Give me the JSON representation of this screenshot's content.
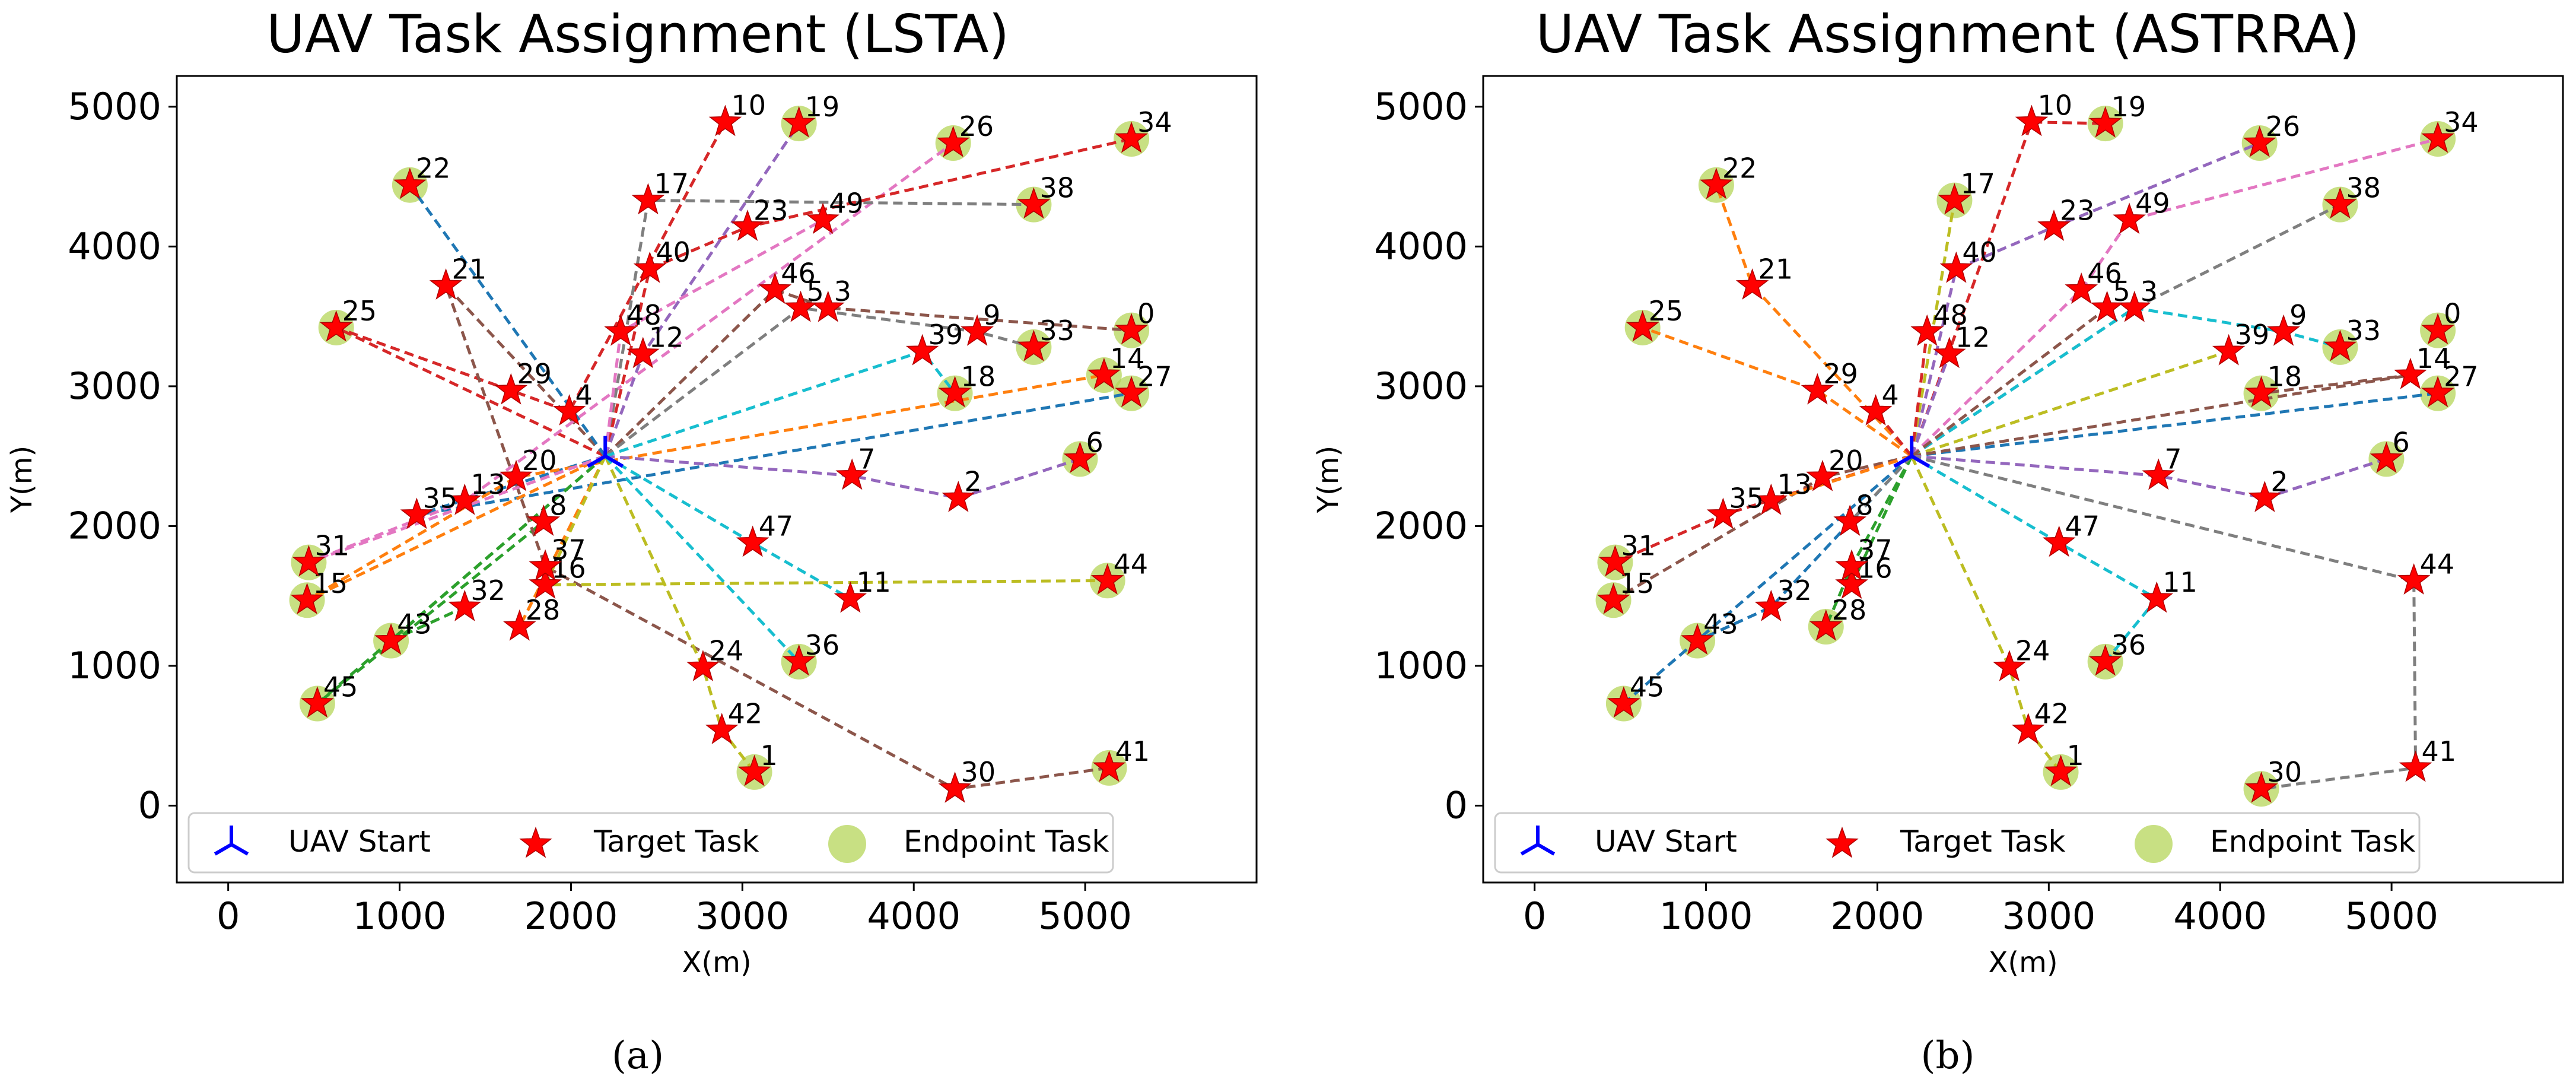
{
  "figure": {
    "panels": [
      {
        "caption": "(a)",
        "legend": [
          "UAV Start",
          "Target Task",
          "Endpoint Task"
        ]
      },
      {
        "caption": "(b)",
        "legend": [
          "UAV Start",
          "Target Task",
          "Endpoint Task"
        ]
      }
    ]
  },
  "chart_data": [
    {
      "type": "scatter",
      "title": "UAV Task Assignment (LSTA)",
      "xlabel": "X(m)",
      "ylabel": "Y(m)",
      "xlim": [
        -300,
        6000
      ],
      "ylim": [
        -550,
        5220
      ],
      "xticks": [
        0,
        1000,
        2000,
        3000,
        4000,
        5000
      ],
      "yticks": [
        0,
        1000,
        2000,
        3000,
        4000,
        5000
      ],
      "grid": false,
      "legend_position": "bottom",
      "uav_start": [
        2200,
        2500
      ],
      "targets": [
        {
          "id": "0",
          "x": 5270,
          "y": 3400
        },
        {
          "id": "1",
          "x": 3070,
          "y": 240
        },
        {
          "id": "2",
          "x": 4260,
          "y": 2200
        },
        {
          "id": "3",
          "x": 3500,
          "y": 3560
        },
        {
          "id": "4",
          "x": 1990,
          "y": 2820
        },
        {
          "id": "5",
          "x": 3340,
          "y": 3560
        },
        {
          "id": "6",
          "x": 4970,
          "y": 2480
        },
        {
          "id": "7",
          "x": 3640,
          "y": 2360
        },
        {
          "id": "8",
          "x": 1840,
          "y": 2030
        },
        {
          "id": "9",
          "x": 4370,
          "y": 3390
        },
        {
          "id": "10",
          "x": 2900,
          "y": 4890
        },
        {
          "id": "11",
          "x": 3630,
          "y": 1480
        },
        {
          "id": "12",
          "x": 2420,
          "y": 3230
        },
        {
          "id": "13",
          "x": 1380,
          "y": 2180
        },
        {
          "id": "14",
          "x": 5110,
          "y": 3080
        },
        {
          "id": "15",
          "x": 460,
          "y": 1470
        },
        {
          "id": "16",
          "x": 1850,
          "y": 1580
        },
        {
          "id": "17",
          "x": 2450,
          "y": 4330
        },
        {
          "id": "18",
          "x": 4240,
          "y": 2950
        },
        {
          "id": "19",
          "x": 3330,
          "y": 4880
        },
        {
          "id": "20",
          "x": 1680,
          "y": 2350
        },
        {
          "id": "21",
          "x": 1270,
          "y": 3720
        },
        {
          "id": "22",
          "x": 1060,
          "y": 4440
        },
        {
          "id": "23",
          "x": 3030,
          "y": 4140
        },
        {
          "id": "24",
          "x": 2770,
          "y": 990
        },
        {
          "id": "25",
          "x": 630,
          "y": 3420
        },
        {
          "id": "26",
          "x": 4230,
          "y": 4740
        },
        {
          "id": "27",
          "x": 5270,
          "y": 2950
        },
        {
          "id": "28",
          "x": 1700,
          "y": 1280
        },
        {
          "id": "29",
          "x": 1650,
          "y": 2970
        },
        {
          "id": "30",
          "x": 4240,
          "y": 120
        },
        {
          "id": "31",
          "x": 470,
          "y": 1740
        },
        {
          "id": "32",
          "x": 1380,
          "y": 1420
        },
        {
          "id": "33",
          "x": 4700,
          "y": 3280
        },
        {
          "id": "34",
          "x": 5270,
          "y": 4770
        },
        {
          "id": "35",
          "x": 1100,
          "y": 2080
        },
        {
          "id": "36",
          "x": 3330,
          "y": 1030
        },
        {
          "id": "37",
          "x": 1850,
          "y": 1710
        },
        {
          "id": "38",
          "x": 4700,
          "y": 4300
        },
        {
          "id": "39",
          "x": 4050,
          "y": 3250
        },
        {
          "id": "40",
          "x": 2460,
          "y": 3840
        },
        {
          "id": "41",
          "x": 5140,
          "y": 270
        },
        {
          "id": "42",
          "x": 2880,
          "y": 540
        },
        {
          "id": "43",
          "x": 950,
          "y": 1180
        },
        {
          "id": "44",
          "x": 5130,
          "y": 1610
        },
        {
          "id": "45",
          "x": 520,
          "y": 730
        },
        {
          "id": "46",
          "x": 3190,
          "y": 3690
        },
        {
          "id": "47",
          "x": 3060,
          "y": 1880
        },
        {
          "id": "48",
          "x": 2290,
          "y": 3390
        },
        {
          "id": "49",
          "x": 3470,
          "y": 4190
        }
      ],
      "endpoints": [
        "0",
        "1",
        "6",
        "14",
        "15",
        "18",
        "19",
        "22",
        "25",
        "26",
        "27",
        "31",
        "33",
        "34",
        "36",
        "38",
        "41",
        "43",
        "44",
        "45"
      ],
      "routes": [
        {
          "color": "#1f77b4",
          "path": [
            "35",
            "27"
          ]
        },
        {
          "color": "#ff7f0e",
          "path": [
            "15",
            "20",
            "14"
          ]
        },
        {
          "color": "#2ca02c",
          "path": [
            "45",
            "8"
          ]
        },
        {
          "color": "#d62728",
          "path": [
            "25",
            "29",
            "4",
            "10"
          ]
        },
        {
          "color": "#9467bd",
          "path": [
            "7",
            "2",
            "6"
          ]
        },
        {
          "color": "#8c564b",
          "path": [
            "21",
            "37",
            "30",
            "41"
          ]
        },
        {
          "color": "#e377c2",
          "path": [
            "31",
            "13",
            "26"
          ]
        },
        {
          "color": "#7f7f7f",
          "path": [
            "17",
            "38"
          ]
        },
        {
          "color": "#bcbd22",
          "path": [
            "24",
            "42",
            "1"
          ]
        },
        {
          "color": "#17becf",
          "path": [
            "47",
            "11"
          ]
        },
        {
          "color": "#1f77b4",
          "path": [
            "22"
          ]
        },
        {
          "color": "#ff7f0e",
          "path": [
            "28"
          ]
        },
        {
          "color": "#2ca02c",
          "path": [
            "43",
            "32"
          ]
        },
        {
          "color": "#d62728",
          "path": [
            "40",
            "23",
            "34"
          ]
        },
        {
          "color": "#9467bd",
          "path": [
            "12",
            "19"
          ]
        },
        {
          "color": "#8c564b",
          "path": [
            "46",
            "3",
            "0"
          ]
        },
        {
          "color": "#e377c2",
          "path": [
            "48",
            "49"
          ]
        },
        {
          "color": "#7f7f7f",
          "path": [
            "5",
            "9",
            "33"
          ]
        },
        {
          "color": "#bcbd22",
          "path": [
            "16",
            "44"
          ]
        },
        {
          "color": "#17becf",
          "path": [
            "39",
            "18"
          ]
        },
        {
          "color": "#17becf",
          "path": [
            "36"
          ]
        }
      ]
    },
    {
      "type": "scatter",
      "title": "UAV Task Assignment (ASTRRA)",
      "xlabel": "X(m)",
      "ylabel": "Y(m)",
      "xlim": [
        -300,
        6000
      ],
      "ylim": [
        -550,
        5220
      ],
      "xticks": [
        0,
        1000,
        2000,
        3000,
        4000,
        5000
      ],
      "yticks": [
        0,
        1000,
        2000,
        3000,
        4000,
        5000
      ],
      "grid": false,
      "legend_position": "bottom",
      "uav_start": [
        2200,
        2500
      ],
      "targets": [
        {
          "id": "0",
          "x": 5270,
          "y": 3400
        },
        {
          "id": "1",
          "x": 3070,
          "y": 240
        },
        {
          "id": "2",
          "x": 4260,
          "y": 2200
        },
        {
          "id": "3",
          "x": 3500,
          "y": 3560
        },
        {
          "id": "4",
          "x": 1990,
          "y": 2820
        },
        {
          "id": "5",
          "x": 3340,
          "y": 3560
        },
        {
          "id": "6",
          "x": 4970,
          "y": 2480
        },
        {
          "id": "7",
          "x": 3640,
          "y": 2360
        },
        {
          "id": "8",
          "x": 1840,
          "y": 2030
        },
        {
          "id": "9",
          "x": 4370,
          "y": 3390
        },
        {
          "id": "10",
          "x": 2900,
          "y": 4890
        },
        {
          "id": "11",
          "x": 3630,
          "y": 1480
        },
        {
          "id": "12",
          "x": 2420,
          "y": 3230
        },
        {
          "id": "13",
          "x": 1380,
          "y": 2180
        },
        {
          "id": "14",
          "x": 5110,
          "y": 3080
        },
        {
          "id": "15",
          "x": 460,
          "y": 1470
        },
        {
          "id": "16",
          "x": 1850,
          "y": 1580
        },
        {
          "id": "17",
          "x": 2450,
          "y": 4330
        },
        {
          "id": "18",
          "x": 4240,
          "y": 2950
        },
        {
          "id": "19",
          "x": 3330,
          "y": 4880
        },
        {
          "id": "20",
          "x": 1680,
          "y": 2350
        },
        {
          "id": "21",
          "x": 1270,
          "y": 3720
        },
        {
          "id": "22",
          "x": 1060,
          "y": 4440
        },
        {
          "id": "23",
          "x": 3030,
          "y": 4140
        },
        {
          "id": "24",
          "x": 2770,
          "y": 990
        },
        {
          "id": "25",
          "x": 630,
          "y": 3420
        },
        {
          "id": "26",
          "x": 4230,
          "y": 4740
        },
        {
          "id": "27",
          "x": 5270,
          "y": 2950
        },
        {
          "id": "28",
          "x": 1700,
          "y": 1280
        },
        {
          "id": "29",
          "x": 1650,
          "y": 2970
        },
        {
          "id": "30",
          "x": 4240,
          "y": 120
        },
        {
          "id": "31",
          "x": 470,
          "y": 1740
        },
        {
          "id": "32",
          "x": 1380,
          "y": 1420
        },
        {
          "id": "33",
          "x": 4700,
          "y": 3280
        },
        {
          "id": "34",
          "x": 5270,
          "y": 4770
        },
        {
          "id": "35",
          "x": 1100,
          "y": 2080
        },
        {
          "id": "36",
          "x": 3330,
          "y": 1030
        },
        {
          "id": "37",
          "x": 1850,
          "y": 1710
        },
        {
          "id": "38",
          "x": 4700,
          "y": 4300
        },
        {
          "id": "39",
          "x": 4050,
          "y": 3250
        },
        {
          "id": "40",
          "x": 2460,
          "y": 3840
        },
        {
          "id": "41",
          "x": 5140,
          "y": 270
        },
        {
          "id": "42",
          "x": 2880,
          "y": 540
        },
        {
          "id": "43",
          "x": 950,
          "y": 1180
        },
        {
          "id": "44",
          "x": 5130,
          "y": 1610
        },
        {
          "id": "45",
          "x": 520,
          "y": 730
        },
        {
          "id": "46",
          "x": 3190,
          "y": 3690
        },
        {
          "id": "47",
          "x": 3060,
          "y": 1880
        },
        {
          "id": "48",
          "x": 2290,
          "y": 3390
        },
        {
          "id": "49",
          "x": 3470,
          "y": 4190
        }
      ],
      "endpoints": [
        "0",
        "1",
        "6",
        "15",
        "17",
        "18",
        "19",
        "22",
        "25",
        "26",
        "27",
        "28",
        "30",
        "31",
        "33",
        "34",
        "36",
        "38",
        "43",
        "45"
      ],
      "routes": [
        {
          "color": "#1f77b4",
          "path": [
            "45"
          ]
        },
        {
          "color": "#ff7f0e",
          "path": [
            "21",
            "22"
          ]
        },
        {
          "color": "#ff7f0e",
          "path": [
            "29",
            "25"
          ]
        },
        {
          "color": "#d62728",
          "path": [
            "10",
            "19"
          ]
        },
        {
          "color": "#9467bd",
          "path": [
            "40",
            "23",
            "26"
          ]
        },
        {
          "color": "#8c564b",
          "path": [
            "20",
            "15"
          ]
        },
        {
          "color": "#e377c2",
          "path": [
            "46",
            "49",
            "34"
          ]
        },
        {
          "color": "#7f7f7f",
          "path": [
            "3",
            "38"
          ]
        },
        {
          "color": "#bcbd22",
          "path": [
            "39"
          ]
        },
        {
          "color": "#17becf",
          "path": [
            "3",
            "9",
            "33"
          ]
        },
        {
          "color": "#1f77b4",
          "path": [
            "27"
          ]
        },
        {
          "color": "#8c564b",
          "path": [
            "14",
            "18"
          ]
        },
        {
          "color": "#9467bd",
          "path": [
            "7",
            "2",
            "6"
          ]
        },
        {
          "color": "#7f7f7f",
          "path": [
            "44",
            "41",
            "30"
          ]
        },
        {
          "color": "#17becf",
          "path": [
            "47",
            "11",
            "36"
          ]
        },
        {
          "color": "#bcbd22",
          "path": [
            "24",
            "42",
            "1"
          ]
        },
        {
          "color": "#2ca02c",
          "path": [
            "37",
            "28"
          ]
        },
        {
          "color": "#1f77b4",
          "path": [
            "32",
            "43"
          ]
        },
        {
          "color": "#d62728",
          "path": [
            "35",
            "31"
          ]
        },
        {
          "color": "#bcbd22",
          "path": [
            "17"
          ]
        },
        {
          "color": "#2ca02c",
          "path": [
            "16"
          ]
        },
        {
          "color": "#7f7f7f",
          "path": [
            "8"
          ]
        },
        {
          "color": "#d62728",
          "path": [
            "4"
          ]
        },
        {
          "color": "#d62728",
          "path": [
            "48"
          ]
        },
        {
          "color": "#9467bd",
          "path": [
            "12"
          ]
        },
        {
          "color": "#ff7f0e",
          "path": [
            "13"
          ]
        },
        {
          "color": "#8c564b",
          "path": [
            "5"
          ]
        }
      ]
    }
  ]
}
